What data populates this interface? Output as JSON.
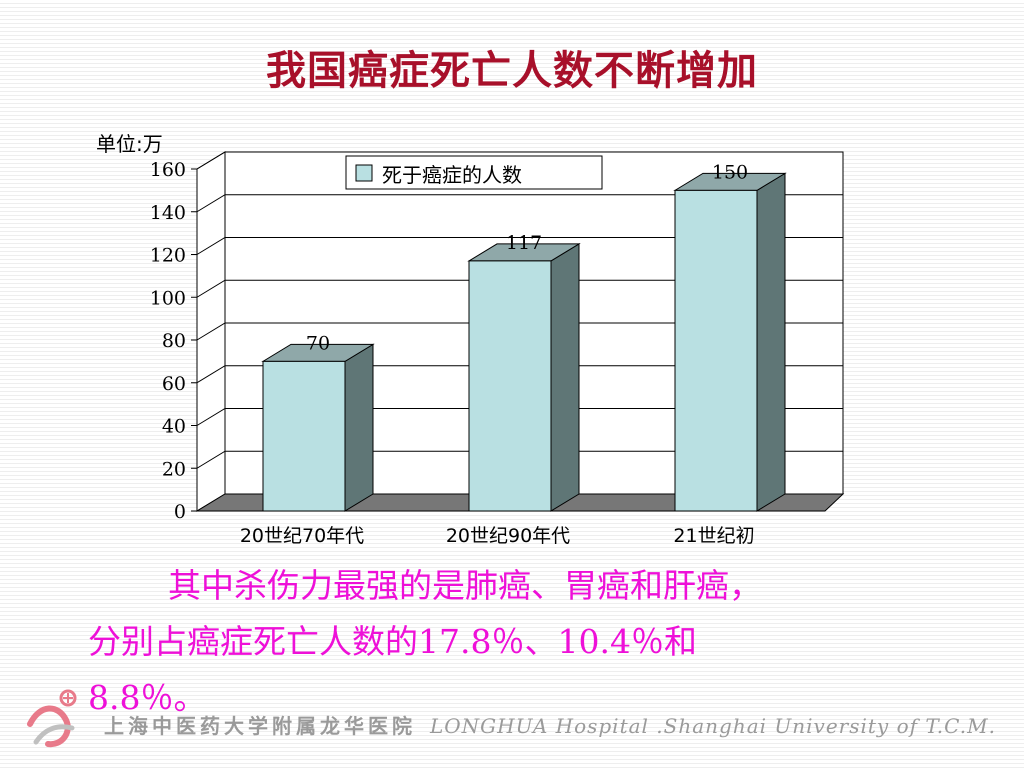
{
  "slide": {
    "title": "我国癌症死亡人数不断增加",
    "body_lines": [
      "其中杀伤力最强的是肺癌、胃癌和肝癌，",
      "分别占癌症死亡人数的17.8％、10.4％和",
      "8.8％。"
    ]
  },
  "footer": {
    "org_cn": "上海中医药大学附属龙华医院",
    "org_en": "LONGHUA Hospital .Shanghai University of T.C.M."
  },
  "chart_data": {
    "type": "bar",
    "unit_label": "单位:万",
    "categories": [
      "20世纪70年代",
      "20世纪90年代",
      "21世纪初"
    ],
    "series": [
      {
        "name": "死于癌症的人数",
        "values": [
          70,
          117,
          150
        ]
      }
    ],
    "data_labels": [
      "70",
      "117",
      "150"
    ],
    "ylim": [
      0,
      160
    ],
    "yticks": [
      "0",
      "20",
      "40",
      "60",
      "80",
      "100",
      "120",
      "140",
      "160"
    ],
    "grid": true,
    "legend_position": "top-center",
    "colors": {
      "bar_front": "#b9e0e2",
      "bar_side": "#5f7676",
      "bar_top": "#8fa8a9",
      "floor": "#777777"
    }
  }
}
